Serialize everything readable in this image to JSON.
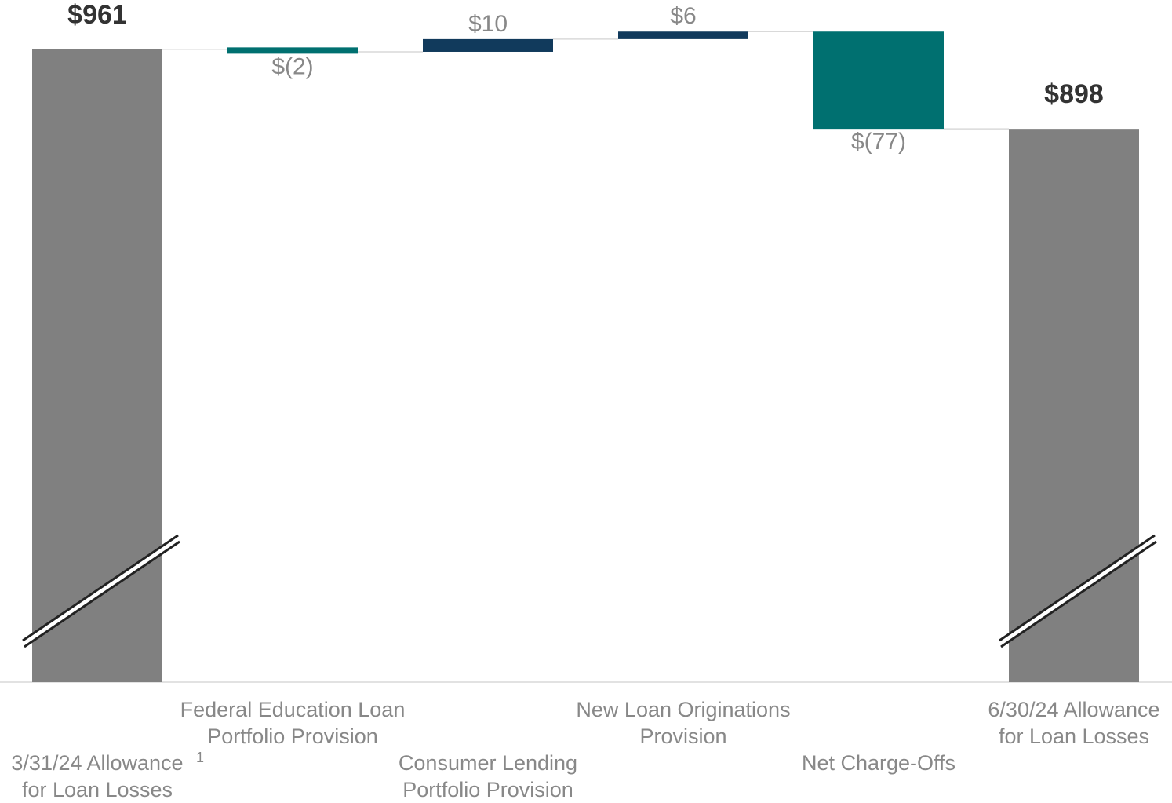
{
  "chart_data": {
    "type": "waterfall",
    "categories": [
      [
        "3/31/24 Allowance",
        "for Loan Losses"
      ],
      [
        "Federal Education Loan",
        "Portfolio Provision"
      ],
      [
        "Consumer Lending",
        "Portfolio Provision"
      ],
      [
        "New Loan Originations",
        "Provision"
      ],
      [
        "Net Charge-Offs"
      ],
      [
        "6/30/24 Allowance",
        "for Loan Losses"
      ]
    ],
    "footnote_marker": "1",
    "values": [
      961,
      -2,
      10,
      6,
      -77,
      898
    ],
    "value_labels": [
      "$961",
      "$(2)",
      "$10",
      "$6",
      "$(77)",
      "$898"
    ],
    "kinds": [
      "total",
      "change",
      "change",
      "change",
      "change",
      "total"
    ],
    "colors": {
      "total": "#808080",
      "increase": "#113a5c",
      "decrease": "#007070"
    },
    "ylim": [
      460,
      1000
    ]
  }
}
